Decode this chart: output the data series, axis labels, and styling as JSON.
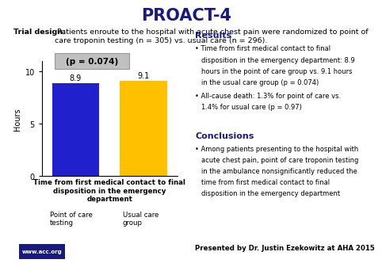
{
  "title": "PROACT-4",
  "title_color": "#1a1a7c",
  "trial_design_bold": "Trial design:",
  "trial_design_text": " Patients enroute to the hospital with acute chest pain were randomized to point of care troponin testing (n = 305) vs. usual care (n = 296).",
  "p_value_label": "(p = 0.074)",
  "bar_values": [
    8.9,
    9.1
  ],
  "bar_labels": [
    "8.9",
    "9.1"
  ],
  "bar_colors": [
    "#2020cc",
    "#ffc000"
  ],
  "ylabel": "Hours",
  "ylim": [
    0,
    11
  ],
  "yticks": [
    0,
    5,
    10
  ],
  "xlabel": "Time from first medical contact to final\ndisposition in the emergency\ndepartment",
  "results_title": "Results",
  "results_bullet1_line1": "Time from first medical contact to final",
  "results_bullet1_line2": "disposition in the emergency department: 8.9",
  "results_bullet1_line3": "hours in the point of care group vs. 9.1 hours",
  "results_bullet1_line4": "in the usual care group (p = 0.074)",
  "results_bullet2_line1": "All-cause death: 1.3% for point of care vs.",
  "results_bullet2_line2": "1.4% for usual care (p = 0.97)",
  "conclusions_title": "Conclusions",
  "conclusions_bullet1_line1": "Among patients presenting to the hospital with",
  "conclusions_bullet1_line2": "acute chest pain, point of care troponin testing",
  "conclusions_bullet1_line3": "in the ambulance nonsignificantly reduced the",
  "conclusions_bullet1_line4": "time from first medical contact to final",
  "conclusions_bullet1_line5": "disposition in the emergency department",
  "footer_text": "Presented by Dr. Justin Ezekowitz at AHA 2015",
  "website": "www.acc.org",
  "header_bg": "#d0d0d0",
  "pvalue_box_bg": "#c0c0c0",
  "legend_colors": [
    "#2020cc",
    "#ffc000"
  ],
  "legend_label1": "Point of care\ntesting",
  "legend_label2": "Usual care\ngroup",
  "accent_color": "#1a1a7c",
  "bullet_char": "•"
}
